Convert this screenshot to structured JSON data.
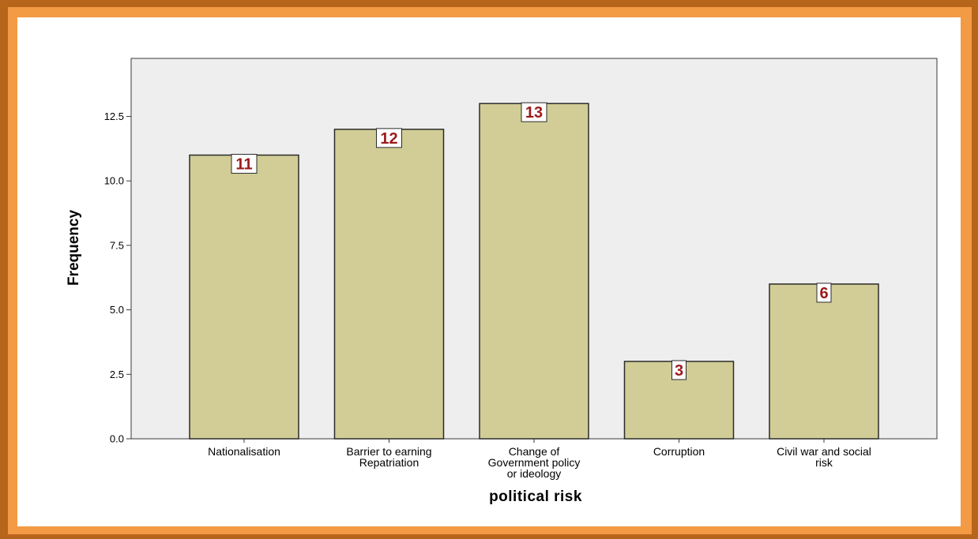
{
  "chart_data": {
    "type": "bar",
    "categories": [
      [
        "Nationalisation"
      ],
      [
        "Barrier to earning",
        "Repatriation"
      ],
      [
        "Change of",
        "Government policy",
        "or ideology"
      ],
      [
        "Corruption"
      ],
      [
        "Civil war and social",
        "risk"
      ]
    ],
    "values": [
      11,
      12,
      13,
      3,
      6
    ],
    "data_labels": [
      "11",
      "12",
      "13",
      "3",
      "6"
    ],
    "xlabel": "political risk",
    "ylabel": "Frequency",
    "ylim": [
      0,
      14.75
    ],
    "yticks": [
      "0.0",
      "2.5",
      "5.0",
      "7.5",
      "10.0",
      "12.5"
    ],
    "ytick_values": [
      0,
      2.5,
      5,
      7.5,
      10,
      12.5
    ],
    "grid": false,
    "colors": {
      "bar_fill": "#d2cd96",
      "bar_stroke": "#2b2b2b",
      "plot_bg": "#eeeeee",
      "data_label": "#9b1b1b",
      "frame_outer": "#b8651c",
      "frame_inner": "#f39a45"
    }
  }
}
